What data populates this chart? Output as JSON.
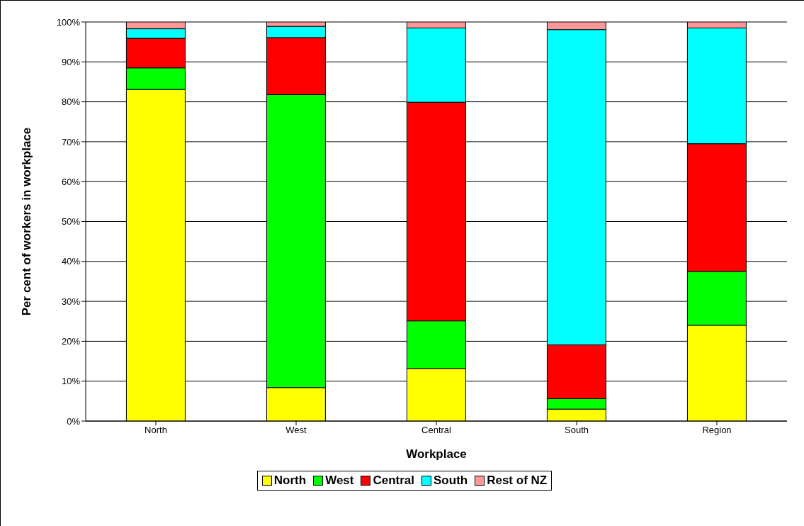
{
  "chart_data": {
    "type": "bar",
    "stacked": true,
    "xlabel": "Workplace",
    "ylabel": "Per cent of workers in workplace",
    "categories": [
      "North",
      "West",
      "Central",
      "South",
      "Region"
    ],
    "series": [
      {
        "name": "North",
        "color": "#ffff00",
        "values": [
          83.1,
          8.4,
          13.2,
          3.0,
          24.0
        ]
      },
      {
        "name": "West",
        "color": "#00ff00",
        "values": [
          5.4,
          73.4,
          11.9,
          2.6,
          13.5
        ]
      },
      {
        "name": "Central",
        "color": "#ff0000",
        "values": [
          7.4,
          14.3,
          54.8,
          13.5,
          32.0
        ]
      },
      {
        "name": "South",
        "color": "#00ffff",
        "values": [
          2.4,
          2.8,
          18.6,
          79.0,
          29.0
        ]
      },
      {
        "name": "Rest of NZ",
        "color": "#ff9999",
        "values": [
          1.7,
          1.1,
          1.5,
          1.9,
          1.5
        ]
      }
    ],
    "ylim": [
      0,
      100
    ],
    "yticks": [
      {
        "value": 0,
        "label": "0%"
      },
      {
        "value": 10,
        "label": "10%"
      },
      {
        "value": 20,
        "label": "20%"
      },
      {
        "value": 30,
        "label": "30%"
      },
      {
        "value": 40,
        "label": "40%"
      },
      {
        "value": 50,
        "label": "50%"
      },
      {
        "value": 60,
        "label": "60%"
      },
      {
        "value": 70,
        "label": "70%"
      },
      {
        "value": 80,
        "label": "80%"
      },
      {
        "value": 90,
        "label": "90%"
      },
      {
        "value": 100,
        "label": "100%"
      }
    ],
    "grid": "y",
    "legend": "bottom"
  }
}
